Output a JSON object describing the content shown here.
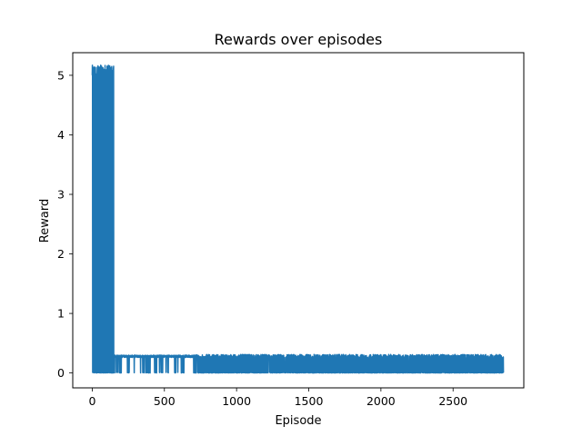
{
  "chart_data": {
    "type": "line",
    "title": "Rewards over episodes",
    "xlabel": "Episode",
    "ylabel": "Reward",
    "xlim": [
      -135,
      2990
    ],
    "ylim": [
      -0.25,
      5.38
    ],
    "xticks": [
      0,
      500,
      1000,
      1500,
      2000,
      2500
    ],
    "xtick_labels": [
      "0",
      "500",
      "1000",
      "1500",
      "2000",
      "2500"
    ],
    "yticks": [
      0,
      1,
      2,
      3,
      4,
      5
    ],
    "ytick_labels": [
      "0",
      "1",
      "2",
      "3",
      "4",
      "5"
    ],
    "grid": false,
    "legend": "none",
    "series": [
      {
        "color": "#1f77b4",
        "episodes": 2850,
        "phases": [
          {
            "from": 0,
            "to": 150,
            "high": 5.05,
            "high_spread": 0.12,
            "low": 0.0,
            "drop_prob": 0.45
          },
          {
            "from": 150,
            "to": 700,
            "high": 0.28,
            "high_spread": 0.02,
            "low": 0.0,
            "drop_prob": 0.08
          },
          {
            "from": 700,
            "to": 2850,
            "high": 0.28,
            "high_spread": 0.03,
            "low": 0.0,
            "drop_prob": 0.5
          }
        ]
      }
    ]
  }
}
